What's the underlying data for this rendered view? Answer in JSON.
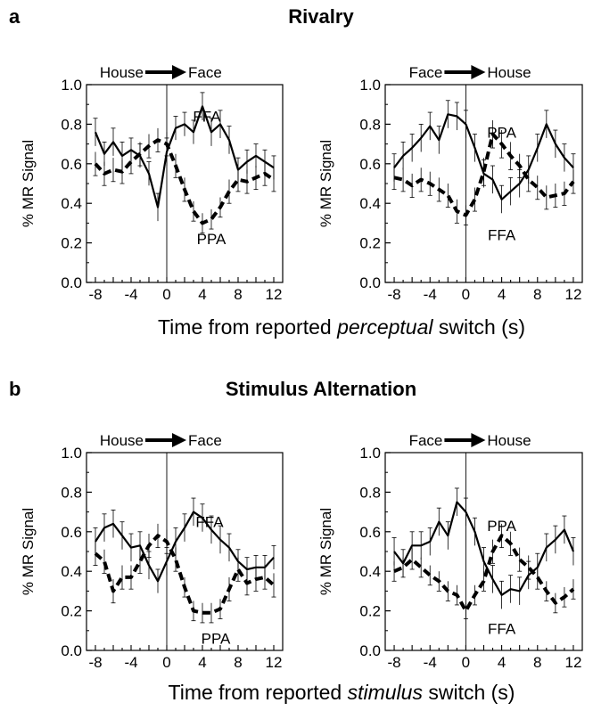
{
  "panels": [
    {
      "letter": "a",
      "title": "Rivalry",
      "xlabel_parts": [
        "Time from reported ",
        "perceptual",
        " switch (s)"
      ]
    },
    {
      "letter": "b",
      "title": "Stimulus Alternation",
      "xlabel_parts": [
        "Time from reported ",
        "stimulus",
        " switch (s)"
      ]
    }
  ],
  "chart_data": [
    {
      "type": "line",
      "panel": "a",
      "switch_label": {
        "from": "House",
        "to": "Face"
      },
      "ylabel": "% MR Signal",
      "xlim": [
        -9,
        13
      ],
      "ylim": [
        0,
        1
      ],
      "xticks": [
        -8,
        -4,
        0,
        4,
        8,
        12
      ],
      "yticks": [
        "0.0",
        "0.2",
        "0.4",
        "0.6",
        "0.8",
        "1.0"
      ],
      "x": [
        -8,
        -7,
        -6,
        -5,
        -4,
        -3,
        -2,
        -1,
        0,
        1,
        2,
        3,
        4,
        5,
        6,
        7,
        8,
        9,
        10,
        11,
        12
      ],
      "series": [
        {
          "name": "FFA",
          "style": "solid",
          "values": [
            0.76,
            0.65,
            0.71,
            0.64,
            0.67,
            0.64,
            0.55,
            0.38,
            0.66,
            0.78,
            0.8,
            0.76,
            0.89,
            0.76,
            0.8,
            0.72,
            0.57,
            0.61,
            0.64,
            0.61,
            0.58
          ],
          "errors": [
            0.07,
            0.06,
            0.07,
            0.07,
            0.06,
            0.06,
            0.06,
            0.07,
            0.07,
            0.06,
            0.06,
            0.06,
            0.07,
            0.07,
            0.07,
            0.07,
            0.06,
            0.06,
            0.06,
            0.06,
            0.06
          ],
          "label_at": [
            4.5,
            0.84
          ]
        },
        {
          "name": "PPA",
          "style": "dashed",
          "values": [
            0.6,
            0.55,
            0.57,
            0.56,
            0.61,
            0.65,
            0.69,
            0.72,
            0.7,
            0.59,
            0.47,
            0.36,
            0.3,
            0.32,
            0.38,
            0.46,
            0.52,
            0.51,
            0.53,
            0.55,
            0.52
          ],
          "errors": [
            0.06,
            0.06,
            0.06,
            0.06,
            0.06,
            0.06,
            0.06,
            0.06,
            0.06,
            0.06,
            0.06,
            0.05,
            0.05,
            0.05,
            0.05,
            0.06,
            0.06,
            0.06,
            0.06,
            0.06,
            0.06
          ],
          "label_at": [
            5.0,
            0.22
          ]
        }
      ]
    },
    {
      "type": "line",
      "panel": "a",
      "switch_label": {
        "from": "Face",
        "to": "House"
      },
      "ylabel": "% MR Signal",
      "xlim": [
        -9,
        13
      ],
      "ylim": [
        0,
        1
      ],
      "xticks": [
        -8,
        -4,
        0,
        4,
        8,
        12
      ],
      "yticks": [
        "0.0",
        "0.2",
        "0.4",
        "0.6",
        "0.8",
        "1.0"
      ],
      "x": [
        -8,
        -7,
        -6,
        -5,
        -4,
        -3,
        -2,
        -1,
        0,
        1,
        2,
        3,
        4,
        5,
        6,
        7,
        8,
        9,
        10,
        11,
        12
      ],
      "series": [
        {
          "name": "PPA",
          "style": "dashed",
          "values": [
            0.53,
            0.52,
            0.49,
            0.52,
            0.5,
            0.47,
            0.44,
            0.36,
            0.34,
            0.42,
            0.56,
            0.75,
            0.7,
            0.64,
            0.59,
            0.52,
            0.48,
            0.43,
            0.44,
            0.45,
            0.51
          ],
          "errors": [
            0.06,
            0.06,
            0.06,
            0.06,
            0.06,
            0.06,
            0.06,
            0.06,
            0.05,
            0.06,
            0.07,
            0.07,
            0.07,
            0.07,
            0.06,
            0.06,
            0.06,
            0.06,
            0.06,
            0.06,
            0.06
          ],
          "label_at": [
            4.0,
            0.76
          ]
        },
        {
          "name": "FFA",
          "style": "solid",
          "values": [
            0.58,
            0.64,
            0.68,
            0.73,
            0.79,
            0.72,
            0.85,
            0.84,
            0.8,
            0.68,
            0.55,
            0.52,
            0.42,
            0.46,
            0.5,
            0.57,
            0.68,
            0.8,
            0.7,
            0.63,
            0.58
          ],
          "errors": [
            0.07,
            0.07,
            0.07,
            0.07,
            0.07,
            0.07,
            0.07,
            0.07,
            0.07,
            0.07,
            0.07,
            0.07,
            0.07,
            0.07,
            0.07,
            0.07,
            0.07,
            0.07,
            0.07,
            0.07,
            0.07
          ],
          "label_at": [
            4.0,
            0.24
          ]
        }
      ]
    },
    {
      "type": "line",
      "panel": "b",
      "switch_label": {
        "from": "House",
        "to": "Face"
      },
      "ylabel": "% MR Signal",
      "xlim": [
        -9,
        13
      ],
      "ylim": [
        0,
        1
      ],
      "xticks": [
        -8,
        -4,
        0,
        4,
        8,
        12
      ],
      "yticks": [
        "0.0",
        "0.2",
        "0.4",
        "0.6",
        "0.8",
        "1.0"
      ],
      "x": [
        -8,
        -7,
        -6,
        -5,
        -4,
        -3,
        -2,
        -1,
        0,
        1,
        2,
        3,
        4,
        5,
        6,
        7,
        8,
        9,
        10,
        11,
        12
      ],
      "series": [
        {
          "name": "FFA",
          "style": "solid",
          "values": [
            0.55,
            0.62,
            0.64,
            0.58,
            0.52,
            0.53,
            0.43,
            0.35,
            0.45,
            0.55,
            0.62,
            0.7,
            0.67,
            0.61,
            0.56,
            0.52,
            0.45,
            0.41,
            0.42,
            0.42,
            0.47
          ],
          "errors": [
            0.07,
            0.07,
            0.07,
            0.07,
            0.07,
            0.07,
            0.07,
            0.06,
            0.07,
            0.07,
            0.07,
            0.07,
            0.07,
            0.07,
            0.07,
            0.07,
            0.06,
            0.06,
            0.06,
            0.06,
            0.06
          ],
          "label_at": [
            4.8,
            0.65
          ]
        },
        {
          "name": "PPA",
          "style": "dashed",
          "values": [
            0.49,
            0.45,
            0.3,
            0.37,
            0.37,
            0.45,
            0.53,
            0.58,
            0.55,
            0.46,
            0.32,
            0.2,
            0.19,
            0.19,
            0.21,
            0.31,
            0.41,
            0.34,
            0.36,
            0.37,
            0.33
          ],
          "errors": [
            0.06,
            0.06,
            0.06,
            0.06,
            0.06,
            0.06,
            0.06,
            0.06,
            0.06,
            0.06,
            0.05,
            0.05,
            0.05,
            0.05,
            0.05,
            0.06,
            0.06,
            0.06,
            0.06,
            0.06,
            0.06
          ],
          "label_at": [
            5.5,
            0.06
          ]
        }
      ]
    },
    {
      "type": "line",
      "panel": "b",
      "switch_label": {
        "from": "Face",
        "to": "House"
      },
      "ylabel": "% MR Signal",
      "xlim": [
        -9,
        13
      ],
      "ylim": [
        0,
        1
      ],
      "xticks": [
        -8,
        -4,
        0,
        4,
        8,
        12
      ],
      "yticks": [
        "0.0",
        "0.2",
        "0.4",
        "0.6",
        "0.8",
        "1.0"
      ],
      "x": [
        -8,
        -7,
        -6,
        -5,
        -4,
        -3,
        -2,
        -1,
        0,
        1,
        2,
        3,
        4,
        5,
        6,
        7,
        8,
        9,
        10,
        11,
        12
      ],
      "series": [
        {
          "name": "PPA",
          "style": "dashed",
          "values": [
            0.4,
            0.42,
            0.46,
            0.42,
            0.38,
            0.35,
            0.3,
            0.28,
            0.2,
            0.28,
            0.35,
            0.5,
            0.58,
            0.54,
            0.46,
            0.42,
            0.37,
            0.3,
            0.24,
            0.27,
            0.31
          ],
          "errors": [
            0.05,
            0.05,
            0.05,
            0.05,
            0.05,
            0.05,
            0.05,
            0.05,
            0.04,
            0.05,
            0.05,
            0.06,
            0.06,
            0.06,
            0.06,
            0.06,
            0.06,
            0.05,
            0.05,
            0.05,
            0.05
          ],
          "label_at": [
            4.0,
            0.63
          ]
        },
        {
          "name": "FFA",
          "style": "solid",
          "values": [
            0.5,
            0.44,
            0.53,
            0.53,
            0.55,
            0.65,
            0.58,
            0.75,
            0.7,
            0.6,
            0.45,
            0.36,
            0.28,
            0.31,
            0.3,
            0.38,
            0.42,
            0.52,
            0.56,
            0.61,
            0.5
          ],
          "errors": [
            0.07,
            0.07,
            0.07,
            0.07,
            0.07,
            0.07,
            0.07,
            0.07,
            0.07,
            0.07,
            0.07,
            0.07,
            0.07,
            0.07,
            0.07,
            0.07,
            0.07,
            0.07,
            0.07,
            0.07,
            0.07
          ],
          "label_at": [
            4.0,
            0.11
          ]
        }
      ]
    }
  ]
}
